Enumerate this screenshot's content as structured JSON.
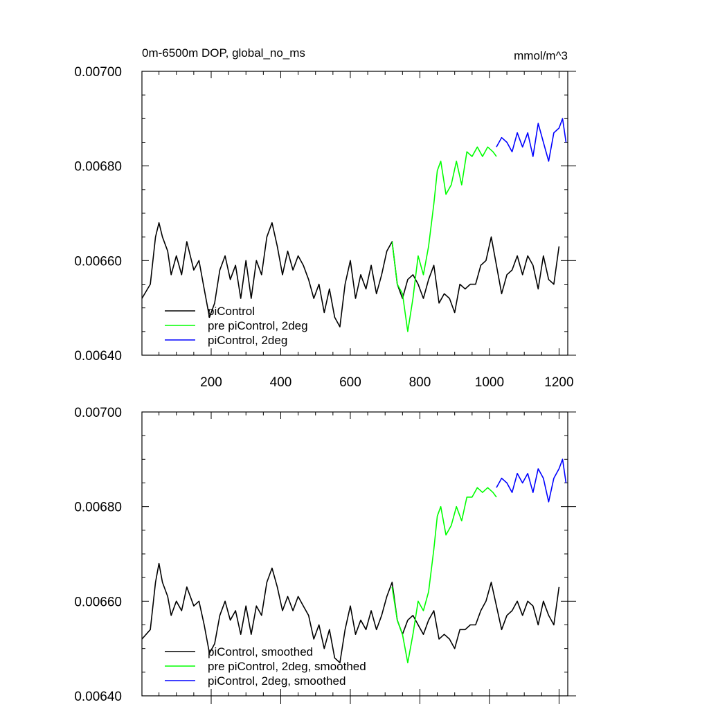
{
  "chart_data": [
    {
      "type": "line",
      "title": "0m-6500m DOP, global_no_ms",
      "units": "mmol/m^3",
      "xlabel": "",
      "ylabel": "",
      "xlim": [
        1,
        1225
      ],
      "ylim": [
        0.0064,
        0.007
      ],
      "x_ticks": [
        200,
        400,
        600,
        800,
        1000,
        1200
      ],
      "x_tick_labels": [
        "200",
        "400",
        "600",
        "800",
        "1000",
        "1200"
      ],
      "y_ticks": [
        0.0064,
        0.0066,
        0.0068,
        0.007
      ],
      "y_tick_labels": [
        "0.00640",
        "0.00660",
        "0.00680",
        "0.00700"
      ],
      "legend_position": "bottom-left",
      "grid": false,
      "series": [
        {
          "name": "piControl",
          "color": "#000000",
          "x": [
            1,
            25,
            40,
            50,
            60,
            75,
            85,
            100,
            115,
            130,
            150,
            165,
            180,
            195,
            210,
            225,
            240,
            255,
            270,
            285,
            300,
            315,
            330,
            345,
            360,
            375,
            390,
            405,
            420,
            435,
            450,
            465,
            480,
            495,
            510,
            525,
            540,
            555,
            570,
            585,
            600,
            615,
            630,
            645,
            660,
            675,
            690,
            705,
            720,
            735,
            750,
            765,
            780,
            795,
            810,
            825,
            840,
            855,
            870,
            885,
            900,
            915,
            930,
            945,
            960,
            975,
            990,
            1005,
            1020,
            1035,
            1050,
            1065,
            1080,
            1095,
            1110,
            1125,
            1140,
            1155,
            1170,
            1185,
            1200
          ],
          "values": [
            0.00652,
            0.00655,
            0.00665,
            0.00668,
            0.00665,
            0.00662,
            0.00657,
            0.00661,
            0.00657,
            0.00664,
            0.00658,
            0.0066,
            0.00654,
            0.00648,
            0.00651,
            0.00658,
            0.00661,
            0.00656,
            0.00659,
            0.00652,
            0.0066,
            0.00652,
            0.0066,
            0.00657,
            0.00665,
            0.00668,
            0.00663,
            0.00657,
            0.00662,
            0.00658,
            0.00661,
            0.00659,
            0.00656,
            0.00652,
            0.00655,
            0.00649,
            0.00654,
            0.00648,
            0.00646,
            0.00655,
            0.0066,
            0.00652,
            0.00657,
            0.00654,
            0.00659,
            0.00653,
            0.00657,
            0.00662,
            0.00664,
            0.00655,
            0.00652,
            0.00656,
            0.00657,
            0.00655,
            0.00652,
            0.00656,
            0.00659,
            0.00651,
            0.00653,
            0.00652,
            0.00649,
            0.00655,
            0.00654,
            0.00655,
            0.00655,
            0.00659,
            0.0066,
            0.00665,
            0.00659,
            0.00653,
            0.00657,
            0.00658,
            0.00661,
            0.00657,
            0.00661,
            0.00659,
            0.00654,
            0.00661,
            0.00656,
            0.00655,
            0.00663
          ]
        },
        {
          "name": "pre piControl, 2deg",
          "color": "#00ff00",
          "x": [
            720,
            735,
            750,
            765,
            780,
            795,
            810,
            825,
            840,
            850,
            860,
            875,
            890,
            905,
            920,
            935,
            950,
            965,
            980,
            995,
            1010,
            1020
          ],
          "values": [
            0.00664,
            0.00655,
            0.00653,
            0.00645,
            0.00652,
            0.00661,
            0.00657,
            0.00663,
            0.00672,
            0.00679,
            0.00681,
            0.00674,
            0.00676,
            0.00681,
            0.00676,
            0.00683,
            0.00682,
            0.00684,
            0.00682,
            0.00684,
            0.00683,
            0.00682
          ]
        },
        {
          "name": "piControl, 2deg",
          "color": "#0000ff",
          "x": [
            1020,
            1035,
            1050,
            1065,
            1080,
            1095,
            1110,
            1125,
            1140,
            1155,
            1170,
            1185,
            1200,
            1210,
            1220
          ],
          "values": [
            0.00684,
            0.00686,
            0.00685,
            0.00683,
            0.00687,
            0.00684,
            0.00687,
            0.00682,
            0.00689,
            0.00685,
            0.00681,
            0.00687,
            0.00688,
            0.0069,
            0.00685
          ]
        }
      ]
    },
    {
      "type": "line",
      "title": "",
      "xlabel": "",
      "ylabel": "",
      "xlim": [
        1,
        1225
      ],
      "ylim": [
        0.0064,
        0.007
      ],
      "y_ticks": [
        0.0064,
        0.0066,
        0.0068,
        0.007
      ],
      "y_tick_labels": [
        "0.00640",
        "0.00660",
        "0.00680",
        "0.00700"
      ],
      "legend_position": "bottom-left",
      "grid": false,
      "series": [
        {
          "name": "piControl, smoothed",
          "color": "#000000",
          "x": [
            1,
            25,
            40,
            50,
            60,
            75,
            85,
            100,
            115,
            130,
            150,
            165,
            180,
            195,
            210,
            225,
            240,
            255,
            270,
            285,
            300,
            315,
            330,
            345,
            360,
            375,
            390,
            405,
            420,
            435,
            450,
            465,
            480,
            495,
            510,
            525,
            540,
            555,
            570,
            585,
            600,
            615,
            630,
            645,
            660,
            675,
            690,
            705,
            720,
            735,
            750,
            765,
            780,
            795,
            810,
            825,
            840,
            855,
            870,
            885,
            900,
            915,
            930,
            945,
            960,
            975,
            990,
            1005,
            1020,
            1035,
            1050,
            1065,
            1080,
            1095,
            1110,
            1125,
            1140,
            1155,
            1170,
            1185,
            1200
          ],
          "values": [
            0.00652,
            0.00654,
            0.00664,
            0.00668,
            0.00664,
            0.00661,
            0.00657,
            0.0066,
            0.00658,
            0.00663,
            0.00659,
            0.0066,
            0.00655,
            0.00649,
            0.00651,
            0.00657,
            0.0066,
            0.00656,
            0.00658,
            0.00653,
            0.00659,
            0.00653,
            0.00659,
            0.00657,
            0.00664,
            0.00667,
            0.00663,
            0.00658,
            0.00661,
            0.00658,
            0.00661,
            0.00659,
            0.00657,
            0.00652,
            0.00655,
            0.0065,
            0.00654,
            0.00648,
            0.00647,
            0.00654,
            0.00659,
            0.00653,
            0.00656,
            0.00654,
            0.00658,
            0.00654,
            0.00657,
            0.00661,
            0.00664,
            0.00656,
            0.00653,
            0.00656,
            0.00657,
            0.00655,
            0.00653,
            0.00656,
            0.00658,
            0.00652,
            0.00653,
            0.00652,
            0.0065,
            0.00654,
            0.00654,
            0.00655,
            0.00655,
            0.00658,
            0.0066,
            0.00664,
            0.00659,
            0.00654,
            0.00657,
            0.00658,
            0.0066,
            0.00657,
            0.0066,
            0.00659,
            0.00655,
            0.0066,
            0.00657,
            0.00655,
            0.00663
          ]
        },
        {
          "name": "pre piControl, 2deg, smoothed",
          "color": "#00ff00",
          "x": [
            720,
            735,
            750,
            765,
            780,
            795,
            810,
            825,
            840,
            850,
            860,
            875,
            890,
            905,
            920,
            935,
            950,
            965,
            980,
            995,
            1010,
            1020
          ],
          "values": [
            0.00663,
            0.00656,
            0.00653,
            0.00647,
            0.00653,
            0.0066,
            0.00658,
            0.00662,
            0.00671,
            0.00678,
            0.0068,
            0.00674,
            0.00676,
            0.0068,
            0.00677,
            0.00682,
            0.00682,
            0.00684,
            0.00683,
            0.00684,
            0.00683,
            0.00682
          ]
        },
        {
          "name": "piControl, 2deg, smoothed",
          "color": "#0000ff",
          "x": [
            1020,
            1035,
            1050,
            1065,
            1080,
            1095,
            1110,
            1125,
            1140,
            1155,
            1170,
            1185,
            1200,
            1210,
            1220
          ],
          "values": [
            0.00684,
            0.00686,
            0.00685,
            0.00683,
            0.00687,
            0.00685,
            0.00687,
            0.00683,
            0.00688,
            0.00686,
            0.00681,
            0.00686,
            0.00688,
            0.0069,
            0.00685
          ]
        }
      ]
    }
  ]
}
